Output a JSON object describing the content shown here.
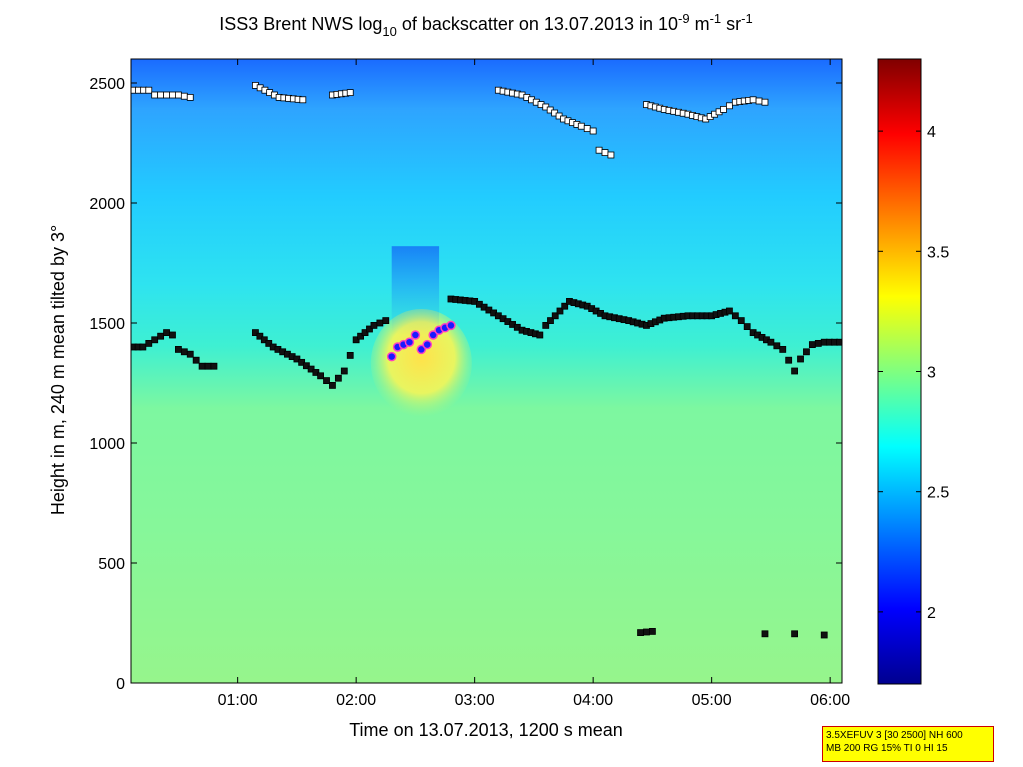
{
  "chart_data": {
    "type": "heatmap",
    "title": {
      "part1": "ISS3 Brent NWS log",
      "sub": "10",
      "part2": " of backscatter on 13.07.2013 in 10",
      "sup1": "-9",
      "part3": " m",
      "sup2": "-1",
      "part4": " sr",
      "sup3": "-1"
    },
    "xlabel": "Time on 13.07.2013, 1200 s mean",
    "ylabel": "Height in m, 240 m mean tilted by 3°",
    "xlim_hours": [
      0.1,
      6.1
    ],
    "ylim": [
      0,
      2600
    ],
    "x_ticks": [
      {
        "value": 1,
        "label": "01:00"
      },
      {
        "value": 2,
        "label": "02:00"
      },
      {
        "value": 3,
        "label": "03:00"
      },
      {
        "value": 4,
        "label": "04:00"
      },
      {
        "value": 5,
        "label": "05:00"
      },
      {
        "value": 6,
        "label": "06:00"
      }
    ],
    "y_ticks": [
      0,
      500,
      1000,
      1500,
      2000,
      2500
    ],
    "colorbar": {
      "range": [
        1.7,
        4.3
      ],
      "ticks": [
        2,
        2.5,
        3,
        3.5,
        4
      ],
      "colors": [
        "#00008f",
        "#0000ff",
        "#00ffff",
        "#ffff00",
        "#ff0000",
        "#800000"
      ]
    },
    "background_fields": [
      {
        "name": "upper-blue",
        "x_range": [
          0.1,
          6.1
        ],
        "y_range": [
          1700,
          2600
        ],
        "value": 2.3
      },
      {
        "name": "mid-cyan",
        "x_range": [
          0.1,
          6.1
        ],
        "y_range": [
          1400,
          1700
        ],
        "value": 2.7
      },
      {
        "name": "lower-green",
        "x_range": [
          0.1,
          6.1
        ],
        "y_range": [
          0,
          1400
        ],
        "value": 3.05
      },
      {
        "name": "plume-yellow",
        "x_range": [
          2.25,
          2.85
        ],
        "y_range": [
          1150,
          1600
        ],
        "value": 3.4
      }
    ],
    "series": [
      {
        "name": "mixed-layer-top",
        "marker": "black-square",
        "points": [
          [
            0.12,
            1400
          ],
          [
            0.2,
            1400
          ],
          [
            0.3,
            1430
          ],
          [
            0.4,
            1460
          ],
          [
            0.45,
            1450
          ],
          [
            0.5,
            1390
          ],
          [
            0.6,
            1370
          ],
          [
            0.7,
            1320
          ],
          [
            0.8,
            1320
          ],
          [
            1.15,
            1460
          ],
          [
            1.3,
            1400
          ],
          [
            1.5,
            1350
          ],
          [
            1.7,
            1280
          ],
          [
            1.8,
            1240
          ],
          [
            1.9,
            1300
          ],
          [
            2.0,
            1430
          ],
          [
            2.15,
            1490
          ],
          [
            2.25,
            1510
          ],
          [
            2.8,
            1600
          ],
          [
            3.0,
            1590
          ],
          [
            3.2,
            1530
          ],
          [
            3.4,
            1470
          ],
          [
            3.55,
            1450
          ],
          [
            3.6,
            1490
          ],
          [
            3.8,
            1590
          ],
          [
            3.95,
            1570
          ],
          [
            4.1,
            1530
          ],
          [
            4.3,
            1510
          ],
          [
            4.45,
            1490
          ],
          [
            4.6,
            1520
          ],
          [
            4.8,
            1530
          ],
          [
            5.0,
            1530
          ],
          [
            5.15,
            1550
          ],
          [
            5.25,
            1510
          ],
          [
            5.35,
            1460
          ],
          [
            5.5,
            1420
          ],
          [
            5.6,
            1390
          ],
          [
            5.7,
            1300
          ],
          [
            5.75,
            1350
          ],
          [
            5.85,
            1410
          ],
          [
            5.95,
            1420
          ],
          [
            6.08,
            1420
          ]
        ]
      },
      {
        "name": "elevated-layer",
        "marker": "white-square",
        "points": [
          [
            0.12,
            2470
          ],
          [
            0.25,
            2470
          ],
          [
            0.3,
            2450
          ],
          [
            0.4,
            2450
          ],
          [
            0.5,
            2450
          ],
          [
            0.6,
            2440
          ],
          [
            1.15,
            2490
          ],
          [
            1.35,
            2440
          ],
          [
            1.55,
            2430
          ],
          [
            1.8,
            2450
          ],
          [
            1.95,
            2460
          ],
          [
            3.2,
            2470
          ],
          [
            3.4,
            2450
          ],
          [
            3.6,
            2400
          ],
          [
            3.75,
            2350
          ],
          [
            3.9,
            2320
          ],
          [
            4.0,
            2300
          ],
          [
            4.05,
            2220
          ],
          [
            4.15,
            2200
          ],
          [
            4.45,
            2410
          ],
          [
            4.6,
            2390
          ],
          [
            4.8,
            2370
          ],
          [
            4.95,
            2350
          ],
          [
            5.1,
            2390
          ],
          [
            5.2,
            2420
          ],
          [
            5.35,
            2430
          ],
          [
            5.45,
            2420
          ]
        ]
      },
      {
        "name": "surface-layer",
        "marker": "black-square",
        "points": [
          [
            4.4,
            210
          ],
          [
            4.5,
            215
          ],
          [
            5.45,
            205
          ],
          [
            5.7,
            205
          ],
          [
            5.95,
            200
          ]
        ]
      },
      {
        "name": "plume-core",
        "marker": "blue-circle",
        "points": [
          [
            2.3,
            1360
          ],
          [
            2.35,
            1400
          ],
          [
            2.45,
            1420
          ],
          [
            2.5,
            1450
          ],
          [
            2.55,
            1390
          ],
          [
            2.6,
            1410
          ],
          [
            2.65,
            1450
          ],
          [
            2.7,
            1470
          ],
          [
            2.75,
            1480
          ],
          [
            2.8,
            1490
          ]
        ]
      }
    ]
  },
  "info_box": {
    "line1": "3.5XEFUV 3 [30 2500] NH 600",
    "line2": "MB 200 RG 15% TI 0 HI 15"
  }
}
